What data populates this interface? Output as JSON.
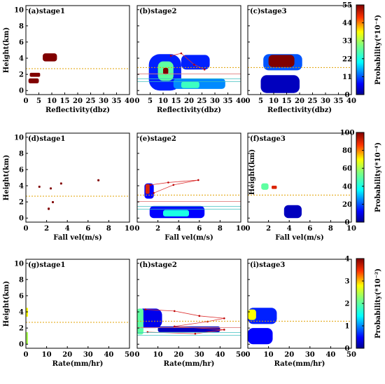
{
  "chart_data": {
    "type": "heatmap",
    "description_rows": [
      {
        "row": "reflectivity",
        "xlabel": "Reflectivity(dbz)",
        "ylabel": "Height(km)",
        "xticks": [
          "0",
          "5",
          "10",
          "15",
          "20",
          "25",
          "30",
          "35",
          "40"
        ],
        "xlim": [
          0,
          40
        ],
        "yticks": [
          "0",
          "2",
          "4",
          "6",
          "8",
          "10"
        ],
        "ylim": [
          -0.5,
          10.5
        ],
        "colorbar_label": "Probability(*10⁻⁴)",
        "colorbar_ticks": [
          "0",
          "11",
          "22",
          "33",
          "44",
          "55"
        ],
        "colorbar_range": [
          0,
          55
        ],
        "panels": [
          {
            "label": "(a)stage1",
            "melting_level_km": 2.7,
            "extra_lines_km": []
          },
          {
            "label": "(b)stage2",
            "melting_level_km": 2.85,
            "extra_lines_km": [
              1.1,
              1.45,
              2.05
            ]
          },
          {
            "label": "(c)stage3",
            "melting_level_km": 2.85,
            "extra_lines_km": []
          }
        ]
      },
      {
        "row": "fall_velocity",
        "xlabel": "Fall vel(m/s)",
        "ylabel": "Height(km)",
        "xticks": [
          "0",
          "2",
          "4",
          "6",
          "8",
          "10"
        ],
        "xlim": [
          0,
          10
        ],
        "yticks": [
          "0",
          "2",
          "4",
          "6",
          "8",
          "10"
        ],
        "ylim": [
          -0.5,
          10.5
        ],
        "colorbar_label": "Probability(*10⁻⁴)",
        "colorbar_ticks": [
          "0",
          "20",
          "40",
          "60",
          "80",
          "100"
        ],
        "colorbar_range": [
          0,
          100
        ],
        "panels": [
          {
            "label": "(d)stage1",
            "melting_level_km": 2.7,
            "extra_lines_km": []
          },
          {
            "label": "(e)stage2",
            "melting_level_km": 2.85,
            "extra_lines_km": [
              1.1,
              1.45,
              2.05
            ]
          },
          {
            "label": "(f)stage3",
            "melting_level_km": 2.85,
            "extra_lines_km": []
          }
        ]
      },
      {
        "row": "rain_rate",
        "xlabel": "Rate(mm/hr)",
        "ylabel": "Height(km)",
        "xticks": [
          "0",
          "10",
          "20",
          "30",
          "40",
          "50"
        ],
        "xlim": [
          0,
          50
        ],
        "yticks": [
          "0",
          "2",
          "4",
          "6",
          "8",
          "10"
        ],
        "ylim": [
          -0.5,
          10.5
        ],
        "colorbar_label": "Probability(*10⁻²)",
        "colorbar_ticks": [
          "0",
          "1",
          "2",
          "3",
          "4"
        ],
        "colorbar_range": [
          0,
          4
        ],
        "panels": [
          {
            "label": "(g)stage1",
            "melting_level_km": 2.7,
            "extra_lines_km": []
          },
          {
            "label": "(h)stage2",
            "melting_level_km": 2.85,
            "extra_lines_km": [
              1.1,
              1.45,
              2.05
            ]
          },
          {
            "label": "(i)stage3",
            "melting_level_km": 2.85,
            "extra_lines_km": []
          }
        ]
      }
    ],
    "blobs": {
      "a": [
        {
          "x": [
            6.5,
            12
          ],
          "y": [
            3.6,
            4.6
          ],
          "level": 1.0
        },
        {
          "x": [
            1.5,
            5.5
          ],
          "y": [
            1.7,
            2.2
          ],
          "level": 1.0
        },
        {
          "x": [
            1.0,
            5.0
          ],
          "y": [
            0.9,
            1.5
          ],
          "level": 1.0
        }
      ],
      "b": [
        {
          "x": [
            4.5,
            17
          ],
          "y": [
            0.0,
            4.5
          ],
          "level": 0.15
        },
        {
          "x": [
            8,
            14
          ],
          "y": [
            1.2,
            3.6
          ],
          "level": 0.5
        },
        {
          "x": [
            10,
            12
          ],
          "y": [
            2.0,
            2.8
          ],
          "level": 1.0
        },
        {
          "x": [
            14,
            34
          ],
          "y": [
            0.2,
            1.5
          ],
          "level": 0.25
        },
        {
          "x": [
            17,
            24
          ],
          "y": [
            0.3,
            1.1
          ],
          "level": 0.45
        },
        {
          "x": [
            17,
            28
          ],
          "y": [
            2.6,
            4.4
          ],
          "level": 0.15
        }
      ],
      "c": [
        {
          "x": [
            6,
            21
          ],
          "y": [
            2.5,
            4.5
          ],
          "level": 0.2
        },
        {
          "x": [
            8,
            18
          ],
          "y": [
            2.9,
            4.4
          ],
          "level": 1.0
        },
        {
          "x": [
            5,
            20
          ],
          "y": [
            -0.3,
            1.9
          ],
          "level": 0.05
        }
      ],
      "d": [
        {
          "x": [
            1.2,
            1.4
          ],
          "y": [
            3.8,
            4.0
          ],
          "level": 1.0
        },
        {
          "x": [
            2.3,
            2.5
          ],
          "y": [
            3.6,
            3.8
          ],
          "level": 1.0
        },
        {
          "x": [
            3.3,
            3.5
          ],
          "y": [
            4.2,
            4.4
          ],
          "level": 1.0
        },
        {
          "x": [
            2.1,
            2.3
          ],
          "y": [
            1.0,
            1.3
          ],
          "level": 1.0
        },
        {
          "x": [
            2.5,
            2.7
          ],
          "y": [
            1.9,
            2.1
          ],
          "level": 1.0
        },
        {
          "x": [
            6.9,
            7.1
          ],
          "y": [
            4.6,
            4.8
          ],
          "level": 1.0
        }
      ],
      "e": [
        {
          "x": [
            0.7,
            1.6
          ],
          "y": [
            2.4,
            4.3
          ],
          "level": 0.12
        },
        {
          "x": [
            0.8,
            1.2
          ],
          "y": [
            3.0,
            4.2
          ],
          "level": 0.9
        },
        {
          "x": [
            1.2,
            6.5
          ],
          "y": [
            0.0,
            1.5
          ],
          "level": 0.12
        },
        {
          "x": [
            2.5,
            5.0
          ],
          "y": [
            0.2,
            1.0
          ],
          "level": 0.4
        }
      ],
      "f": [
        {
          "x": [
            1.3,
            2.0
          ],
          "y": [
            3.5,
            4.3
          ],
          "level": 0.5
        },
        {
          "x": [
            2.3,
            2.8
          ],
          "y": [
            3.6,
            4.0
          ],
          "level": 0.9
        },
        {
          "x": [
            3.5,
            5.2
          ],
          "y": [
            0.0,
            1.6
          ],
          "level": 0.05
        }
      ],
      "g": [
        {
          "x": [
            0.0,
            0.8
          ],
          "y": [
            3.4,
            4.5
          ],
          "level": 0.7
        },
        {
          "x": [
            0.0,
            0.6
          ],
          "y": [
            0.0,
            1.5
          ],
          "level": 0.6
        }
      ],
      "h": [
        {
          "x": [
            0.0,
            12
          ],
          "y": [
            2.0,
            4.4
          ],
          "level": 0.1
        },
        {
          "x": [
            0.0,
            3
          ],
          "y": [
            1.2,
            4.4
          ],
          "level": 0.5
        },
        {
          "x": [
            10,
            40
          ],
          "y": [
            1.5,
            2.2
          ],
          "level": 0.05
        }
      ],
      "i": [
        {
          "x": [
            0.0,
            14
          ],
          "y": [
            2.5,
            4.5
          ],
          "level": 0.15
        },
        {
          "x": [
            0.0,
            4
          ],
          "y": [
            3.0,
            4.3
          ],
          "level": 0.7
        },
        {
          "x": [
            0.0,
            12
          ],
          "y": [
            0.0,
            2.0
          ],
          "level": 0.12
        }
      ]
    },
    "outlines": {
      "b": [
        [
          26,
          2.6
        ],
        [
          22,
          3.2
        ],
        [
          17,
          4.6
        ],
        [
          13,
          4.3
        ]
      ],
      "e": [
        [
          1.3,
          4.1
        ],
        [
          3.0,
          4.4
        ],
        [
          5.9,
          4.7
        ],
        [
          3.5,
          4.1
        ],
        [
          1.6,
          3.1
        ]
      ],
      "h": [
        [
          4,
          4.3
        ],
        [
          18,
          4.1
        ],
        [
          30,
          3.5
        ],
        [
          42,
          3.2
        ],
        [
          34,
          2.8
        ],
        [
          18,
          2.2
        ],
        [
          42,
          1.8
        ],
        [
          28,
          1.3
        ],
        [
          5,
          1.5
        ]
      ]
    }
  }
}
